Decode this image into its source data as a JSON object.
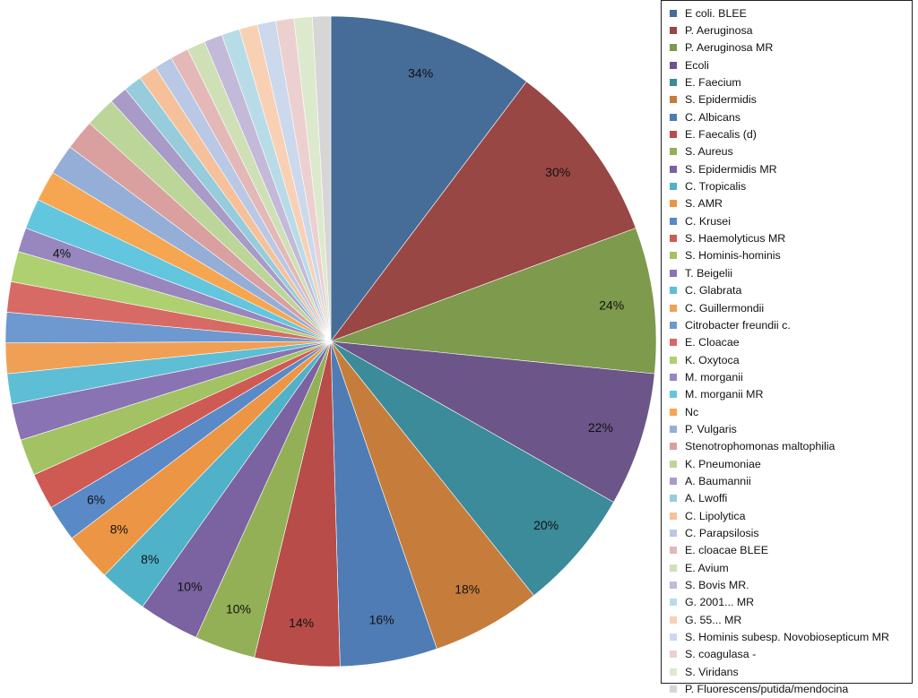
{
  "chart_data": {
    "type": "pie",
    "title": "",
    "legend_position": "right",
    "start": "top, clockwise",
    "categories": [
      "E coli. BLEE",
      "P. Aeruginosa",
      "P. Aeruginosa MR",
      "Ecoli",
      "E. Faecium",
      "S. Epidermidis",
      "C. Albicans",
      "E. Faecalis (d)",
      "S. Aureus",
      "S. Epidermidis MR",
      "C. Tropicalis",
      "S. AMR",
      "C. Krusei",
      "S. Haemolyticus MR",
      "S. Hominis-hominis",
      "T. Beigelii",
      "C. Glabrata",
      "C. Guillermondii",
      "Citrobacter freundii c.",
      "E. Cloacae",
      "K. Oxytoca",
      "M. morganii",
      "M. morganii MR",
      "Nc",
      "P. Vulgaris",
      "Stenotrophomonas maltophilia",
      "K. Pneumoniae",
      "A. Baumannii",
      "A. Lwoffi",
      "C. Lipolytica",
      "C. Parapsilosis",
      "E. cloacae BLEE",
      "E. Avium",
      "S. Bovis MR.",
      "G. 2001... MR",
      "G. 55... MR",
      "S. Hominis subesp. Novobiosepticum MR",
      "S. coagulasa -",
      "S. Viridans",
      "P. Fluorescens/putida/mendocina"
    ],
    "values": [
      34,
      30,
      24,
      22,
      20,
      18,
      16,
      14,
      10,
      10,
      8,
      8,
      6,
      6,
      6,
      6,
      5,
      5,
      5,
      5,
      5,
      4,
      5,
      5,
      5,
      5,
      5,
      3,
      3,
      3,
      3,
      3,
      3,
      3,
      3,
      3,
      3,
      3,
      3,
      3
    ],
    "labels": [
      "34%",
      "30%",
      "24%",
      "22%",
      "20%",
      "18%",
      "16%",
      "14%",
      "10%",
      "10%",
      "8%",
      "8%",
      "6%",
      "",
      "",
      "",
      "",
      "",
      "",
      "",
      "",
      "4%",
      "",
      "",
      "",
      "",
      "",
      "",
      "",
      "",
      "",
      "",
      "",
      "",
      "",
      "",
      "",
      "",
      "",
      ""
    ],
    "colors": [
      "#466c98",
      "#994744",
      "#7d9a4d",
      "#6c5588",
      "#3b8b9a",
      "#c67d3b",
      "#4f7cb4",
      "#b74c48",
      "#93b057",
      "#7b62a1",
      "#4fb2c8",
      "#ec9545",
      "#5a89c7",
      "#cf5a54",
      "#a2c263",
      "#8a73b3",
      "#5dbed5",
      "#f0a055",
      "#6d98d0",
      "#d76a64",
      "#aed070",
      "#9886bf",
      "#62c6df",
      "#f6a651",
      "#94aed8",
      "#d9a09f",
      "#bcd598",
      "#a99bc7",
      "#96ccdc",
      "#f6c19a",
      "#b9c8e5",
      "#e3b8b7",
      "#cfe0b7",
      "#c3b9d8",
      "#b8dce7",
      "#f8d1b5",
      "#ccd8ec",
      "#ecd0cf",
      "#dde9cd",
      "#d6d6d6"
    ]
  }
}
